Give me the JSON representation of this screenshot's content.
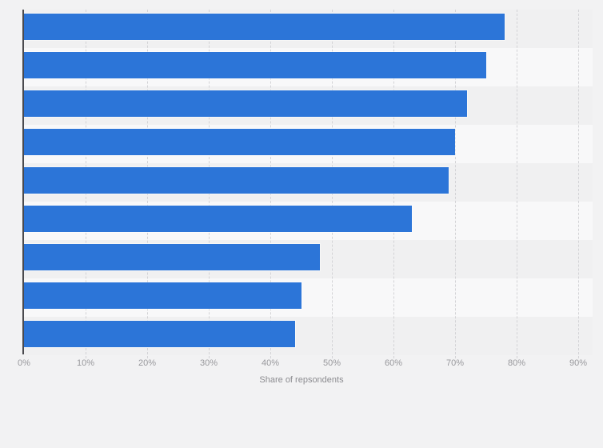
{
  "chart_data": {
    "type": "bar",
    "orientation": "horizontal",
    "values": [
      78,
      75,
      72,
      70,
      69,
      63,
      48,
      45,
      44
    ],
    "unit": "%",
    "title": "",
    "xlabel": "Share of repsondents",
    "ylabel": "",
    "x_ticks": [
      "0%",
      "10%",
      "20%",
      "30%",
      "40%",
      "50%",
      "60%",
      "70%",
      "80%",
      "90%"
    ],
    "x_tick_values": [
      0,
      10,
      20,
      30,
      40,
      50,
      60,
      70,
      80,
      90
    ],
    "xlim": [
      0,
      92
    ],
    "grid": "vertical-dashed",
    "legend": "none",
    "category_labels_visible": false
  },
  "colors": {
    "bar": "#2c75d8",
    "axis_line": "#4a4a4e",
    "gridline": "#d3d3d6",
    "tick_label": "#98989c",
    "axis_title": "#8c8c90",
    "band_dark": "#f0f0f1",
    "band_light": "#f8f8f9",
    "page_background": "#f2f2f3"
  }
}
